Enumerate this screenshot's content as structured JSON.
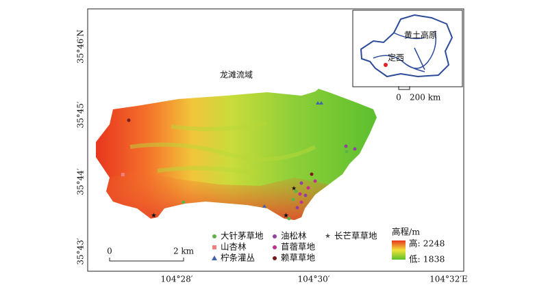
{
  "map": {
    "title": "龙滩流域",
    "lat_labels": [
      "35°46′N",
      "35°45′",
      "35°44′",
      "35°43′"
    ],
    "lon_labels": [
      "104°28′",
      "104°30′",
      "104°32′E"
    ],
    "legend": {
      "vegetation": [
        "大针茅草地",
        "山杏林",
        "柠条灌丛",
        "油松林",
        "苜蓿草地",
        "赖草草地",
        "长芒草草地"
      ],
      "elevation": {
        "title": "高程/m",
        "high": "高: 2248",
        "low": "低: 1838"
      }
    },
    "scale_bar": {
      "start": "0",
      "end": "2 km"
    },
    "inset": {
      "region": "黄土高原",
      "site": "定西",
      "scale_start": "0",
      "scale_end": "200 km"
    }
  }
}
